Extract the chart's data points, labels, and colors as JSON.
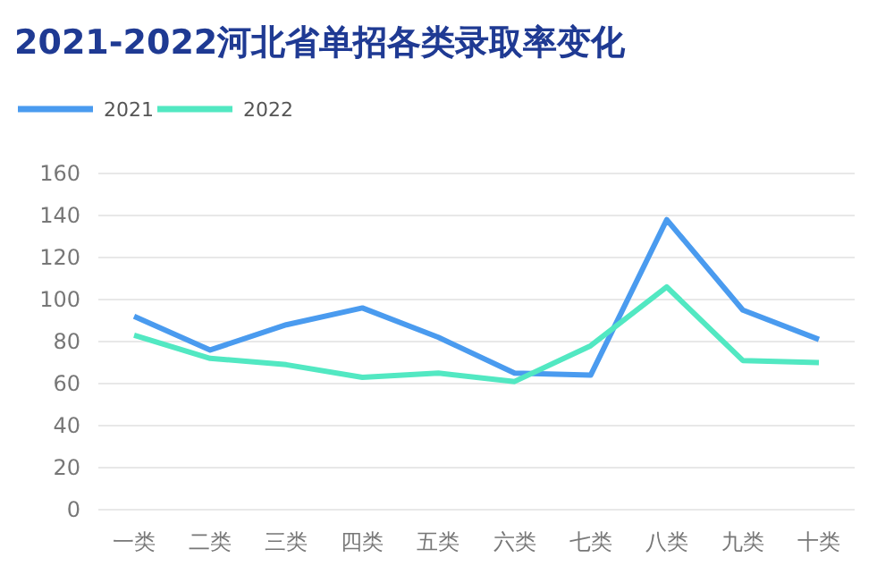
{
  "chart_data": {
    "type": "line",
    "title": "2021-2022河北省单招各类录取率变化",
    "categories": [
      "一类",
      "二类",
      "三类",
      "四类",
      "五类",
      "六类",
      "七类",
      "八类",
      "九类",
      "十类"
    ],
    "series": [
      {
        "name": "2021",
        "color": "#4a9bef",
        "values": [
          92,
          76,
          88,
          96,
          82,
          65,
          64,
          138,
          95,
          81
        ]
      },
      {
        "name": "2022",
        "color": "#52e8c2",
        "values": [
          83,
          72,
          69,
          63,
          65,
          61,
          78,
          106,
          71,
          70
        ]
      }
    ],
    "ylim": [
      0,
      160
    ],
    "yticks": [
      0,
      20,
      40,
      60,
      80,
      100,
      120,
      140,
      160
    ],
    "grid": "y",
    "legend": "top left",
    "marker": "none",
    "line_style": "solid"
  }
}
